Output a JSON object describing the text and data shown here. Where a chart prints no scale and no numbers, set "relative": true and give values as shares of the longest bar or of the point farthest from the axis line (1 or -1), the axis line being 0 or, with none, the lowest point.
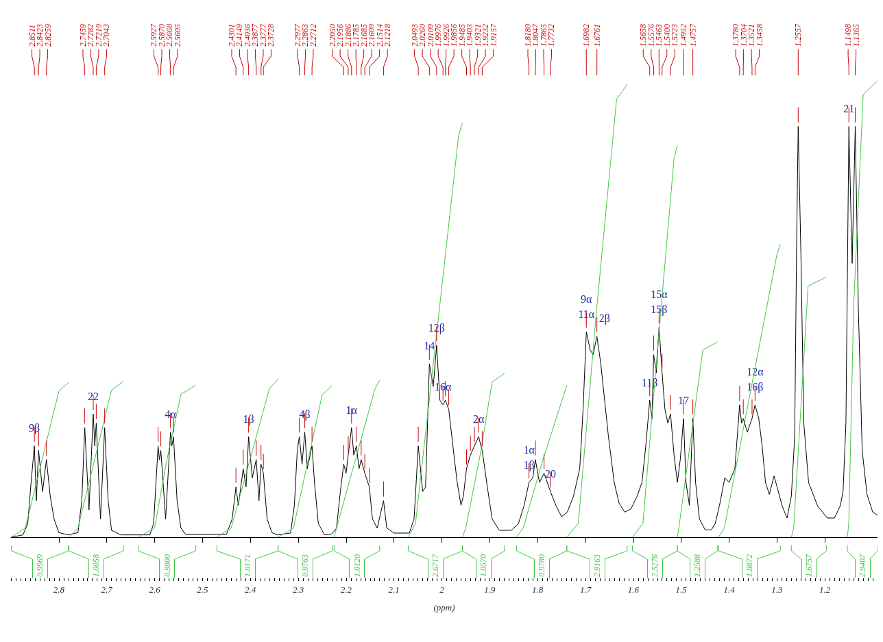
{
  "chart_data": {
    "type": "line",
    "relative": true,
    "marker": "none",
    "legend": "bottom",
    "xlabel": "(ppm)",
    "xlim": [
      2.9,
      1.09
    ],
    "xticks": [
      2.8,
      2.7,
      2.6,
      2.5,
      2.4,
      2.3,
      2.2,
      2.1,
      2.0,
      1.9,
      1.8,
      1.7,
      1.6,
      1.5,
      1.4,
      1.3,
      1.2
    ],
    "series": [
      {
        "color": "#000000",
        "x": [
          2.899,
          2.875,
          2.865,
          2.858,
          2.8511,
          2.847,
          2.8423,
          2.834,
          2.8259,
          2.818,
          2.81,
          2.8,
          2.78,
          2.76,
          2.752,
          2.7459,
          2.737,
          2.7282,
          2.725,
          2.7219,
          2.713,
          2.7043,
          2.697,
          2.69,
          2.67,
          2.61,
          2.602,
          2.5927,
          2.59,
          2.587,
          2.577,
          2.5668,
          2.564,
          2.5605,
          2.553,
          2.545,
          2.535,
          2.45,
          2.438,
          2.4301,
          2.425,
          2.4149,
          2.409,
          2.4036,
          2.396,
          2.3877,
          2.382,
          2.3777,
          2.3728,
          2.365,
          2.355,
          2.344,
          2.316,
          2.308,
          2.302,
          2.2977,
          2.292,
          2.2863,
          2.281,
          2.2712,
          2.266,
          2.258,
          2.245,
          2.23,
          2.22,
          2.212,
          2.205,
          2.2,
          2.1956,
          2.1886,
          2.184,
          2.1785,
          2.173,
          2.1685,
          2.1609,
          2.1514,
          2.145,
          2.135,
          2.1218,
          2.115,
          2.1,
          2.068,
          2.058,
          2.0493,
          2.04,
          2.034,
          2.026,
          2.018,
          2.0109,
          2.004,
          1.9976,
          1.9926,
          1.9856,
          1.978,
          1.968,
          1.96,
          1.955,
          1.9485,
          1.9403,
          1.9321,
          1.9232,
          1.9157,
          1.905,
          1.895,
          1.88,
          1.855,
          1.84,
          1.828,
          1.818,
          1.81,
          1.8047,
          1.796,
          1.7865,
          1.7732,
          1.762,
          1.75,
          1.738,
          1.725,
          1.712,
          1.705,
          1.6982,
          1.69,
          1.684,
          1.6761,
          1.668,
          1.66,
          1.652,
          1.64,
          1.63,
          1.618,
          1.605,
          1.592,
          1.582,
          1.574,
          1.5658,
          1.561,
          1.5576,
          1.552,
          1.5463,
          1.54,
          1.534,
          1.528,
          1.5223,
          1.515,
          1.508,
          1.502,
          1.4952,
          1.49,
          1.483,
          1.4757,
          1.47,
          1.462,
          1.45,
          1.437,
          1.429,
          1.42,
          1.409,
          1.4,
          1.388,
          1.378,
          1.374,
          1.3704,
          1.362,
          1.3521,
          1.3458,
          1.338,
          1.331,
          1.324,
          1.316,
          1.306,
          1.299,
          1.289,
          1.279,
          1.27,
          1.263,
          1.259,
          1.2557,
          1.25,
          1.244,
          1.234,
          1.215,
          1.195,
          1.18,
          1.168,
          1.162,
          1.156,
          1.1498,
          1.143,
          1.1365,
          1.13,
          1.122,
          1.112,
          1.1,
          1.09
        ],
        "values": [
          0,
          0.005,
          0.03,
          0.12,
          0.2,
          0.08,
          0.19,
          0.1,
          0.17,
          0.09,
          0.04,
          0.01,
          0.005,
          0.01,
          0.08,
          0.24,
          0.06,
          0.27,
          0.2,
          0.25,
          0.04,
          0.24,
          0.08,
          0.015,
          0.005,
          0.005,
          0.03,
          0.2,
          0.17,
          0.19,
          0.04,
          0.23,
          0.2,
          0.22,
          0.08,
          0.02,
          0.006,
          0.006,
          0.04,
          0.11,
          0.07,
          0.15,
          0.11,
          0.22,
          0.13,
          0.17,
          0.08,
          0.16,
          0.14,
          0.04,
          0.01,
          0.005,
          0.009,
          0.07,
          0.19,
          0.22,
          0.16,
          0.23,
          0.15,
          0.2,
          0.12,
          0.03,
          0.005,
          0.007,
          0.02,
          0.1,
          0.16,
          0.14,
          0.18,
          0.24,
          0.18,
          0.2,
          0.15,
          0.17,
          0.14,
          0.11,
          0.04,
          0.02,
          0.08,
          0.02,
          0.009,
          0.009,
          0.04,
          0.2,
          0.1,
          0.11,
          0.38,
          0.33,
          0.42,
          0.3,
          0.29,
          0.3,
          0.28,
          0.21,
          0.12,
          0.07,
          0.09,
          0.15,
          0.18,
          0.2,
          0.22,
          0.19,
          0.11,
          0.04,
          0.015,
          0.015,
          0.03,
          0.07,
          0.12,
          0.13,
          0.17,
          0.12,
          0.14,
          0.1,
          0.07,
          0.045,
          0.055,
          0.09,
          0.15,
          0.28,
          0.45,
          0.41,
          0.4,
          0.44,
          0.38,
          0.3,
          0.22,
          0.12,
          0.075,
          0.055,
          0.062,
          0.09,
          0.12,
          0.2,
          0.3,
          0.26,
          0.4,
          0.36,
          0.46,
          0.36,
          0.28,
          0.25,
          0.27,
          0.18,
          0.12,
          0.17,
          0.26,
          0.12,
          0.07,
          0.26,
          0.12,
          0.04,
          0.016,
          0.016,
          0.03,
          0.07,
          0.13,
          0.12,
          0.15,
          0.29,
          0.25,
          0.26,
          0.23,
          0.26,
          0.29,
          0.26,
          0.2,
          0.12,
          0.094,
          0.134,
          0.107,
          0.068,
          0.042,
          0.09,
          0.22,
          0.64,
          0.9,
          0.62,
          0.25,
          0.12,
          0.068,
          0.042,
          0.042,
          0.068,
          0.1,
          0.25,
          0.9,
          0.6,
          0.9,
          0.5,
          0.19,
          0.094,
          0.055,
          0.048
        ]
      },
      {
        "name": "0.9969",
        "color": "#40c840",
        "x": [
          2.899,
          2.87,
          2.835,
          2.8,
          2.78
        ],
        "values": [
          0,
          0.02,
          0.17,
          0.32,
          0.339
        ]
      },
      {
        "name": "1.0058",
        "color": "#40c840",
        "x": [
          2.779,
          2.76,
          2.725,
          2.69,
          2.665
        ],
        "values": [
          0,
          0.02,
          0.171,
          0.322,
          0.342
        ]
      },
      {
        "name": "0.9800",
        "color": "#40c840",
        "x": [
          2.634,
          2.6,
          2.575,
          2.545,
          2.514
        ],
        "values": [
          0,
          0.02,
          0.166,
          0.313,
          0.333
        ]
      },
      {
        "name": "1.0171",
        "color": "#40c840",
        "x": [
          2.47,
          2.44,
          2.4,
          2.36,
          2.342
        ],
        "values": [
          0,
          0.02,
          0.173,
          0.326,
          0.346
        ]
      },
      {
        "name": "0.9763",
        "color": "#40c840",
        "x": [
          2.342,
          2.31,
          2.28,
          2.25,
          2.229
        ],
        "values": [
          0,
          0.02,
          0.166,
          0.312,
          0.332
        ]
      },
      {
        "name": "1.0120",
        "color": "#40c840",
        "x": [
          2.225,
          2.22,
          2.18,
          2.14,
          2.13
        ],
        "values": [
          0,
          0.02,
          0.172,
          0.324,
          0.344
        ]
      },
      {
        "name": "2.6717",
        "color": "#40c840",
        "x": [
          2.07,
          2.055,
          2.01,
          1.965,
          1.957
        ],
        "values": [
          0,
          0.03,
          0.454,
          0.88,
          0.908
        ]
      },
      {
        "name": "1.0570",
        "color": "#40c840",
        "x": [
          1.957,
          1.95,
          1.92,
          1.895,
          1.869
        ],
        "values": [
          0,
          0.02,
          0.18,
          0.34,
          0.359
        ]
      },
      {
        "name": "0.9780",
        "color": "#40c840",
        "x": [
          1.844,
          1.83,
          1.79,
          1.745,
          1.739
        ],
        "values": [
          0,
          0.02,
          0.166,
          0.313,
          0.333
        ]
      },
      {
        "name": "2.9163",
        "color": "#40c840",
        "x": [
          1.739,
          1.715,
          1.677,
          1.635,
          1.613
        ],
        "values": [
          0,
          0.03,
          0.496,
          0.96,
          0.992
        ]
      },
      {
        "name": "2.5276",
        "color": "#40c840",
        "x": [
          1.602,
          1.58,
          1.548,
          1.515,
          1.508
        ],
        "values": [
          0,
          0.03,
          0.43,
          0.83,
          0.859
        ]
      },
      {
        "name": "1.2588",
        "color": "#40c840",
        "x": [
          1.508,
          1.505,
          1.48,
          1.455,
          1.424
        ],
        "values": [
          0,
          0.02,
          0.214,
          0.41,
          0.428
        ]
      },
      {
        "name": "1.8872",
        "color": "#40c840",
        "x": [
          1.422,
          1.41,
          1.355,
          1.3,
          1.293
        ],
        "values": [
          0,
          0.02,
          0.321,
          0.62,
          0.642
        ]
      },
      {
        "name": "1.6757",
        "color": "#40c840",
        "x": [
          1.27,
          1.265,
          1.25,
          1.235,
          1.197
        ],
        "values": [
          0,
          0.02,
          0.285,
          0.55,
          0.57
        ]
      },
      {
        "name": "2.9407",
        "color": "#40c840",
        "x": [
          1.153,
          1.15,
          1.14,
          1.12,
          1.09
        ],
        "values": [
          0,
          0.03,
          0.5,
          0.97,
          1.0
        ]
      }
    ],
    "annotations": [
      {
        "text": "2.8511",
        "x": 2.8511
      },
      {
        "text": "2.8423",
        "x": 2.8423
      },
      {
        "text": "2.8259",
        "x": 2.8259
      },
      {
        "text": "2.7459",
        "x": 2.7459
      },
      {
        "text": "2.7282",
        "x": 2.7282
      },
      {
        "text": "2.7219",
        "x": 2.7219
      },
      {
        "text": "2.7043",
        "x": 2.7043
      },
      {
        "text": "2.5927",
        "x": 2.5927
      },
      {
        "text": "2.5870",
        "x": 2.587
      },
      {
        "text": "2.5668",
        "x": 2.5668
      },
      {
        "text": "2.5605",
        "x": 2.5605
      },
      {
        "text": "2.4301",
        "x": 2.4301
      },
      {
        "text": "2.4149",
        "x": 2.4149
      },
      {
        "text": "2.4036",
        "x": 2.4036
      },
      {
        "text": "2.3877",
        "x": 2.3877
      },
      {
        "text": "2.3777",
        "x": 2.3777
      },
      {
        "text": "2.3728",
        "x": 2.3728
      },
      {
        "text": "2.2977",
        "x": 2.2977
      },
      {
        "text": "2.2863",
        "x": 2.2863
      },
      {
        "text": "2.2712",
        "x": 2.2712
      },
      {
        "text": "2.2050",
        "x": 2.205
      },
      {
        "text": "2.1956",
        "x": 2.1956
      },
      {
        "text": "2.1886",
        "x": 2.1886
      },
      {
        "text": "2.1785",
        "x": 2.1785
      },
      {
        "text": "2.1685",
        "x": 2.1685
      },
      {
        "text": "2.1609",
        "x": 2.1609
      },
      {
        "text": "2.1514",
        "x": 2.1514
      },
      {
        "text": "2.1218",
        "x": 2.1218
      },
      {
        "text": "2.0493",
        "x": 2.0493
      },
      {
        "text": "2.0260",
        "x": 2.026
      },
      {
        "text": "2.0109",
        "x": 2.0109
      },
      {
        "text": "1.9976",
        "x": 1.9976
      },
      {
        "text": "1.9926",
        "x": 1.9926
      },
      {
        "text": "1.9856",
        "x": 1.9856
      },
      {
        "text": "1.9485",
        "x": 1.9485
      },
      {
        "text": "1.9403",
        "x": 1.9403
      },
      {
        "text": "1.9321",
        "x": 1.9321
      },
      {
        "text": "1.9232",
        "x": 1.9232
      },
      {
        "text": "1.9157",
        "x": 1.9157
      },
      {
        "text": "1.8180",
        "x": 1.818
      },
      {
        "text": "1.8047",
        "x": 1.8047
      },
      {
        "text": "1.7865",
        "x": 1.7865
      },
      {
        "text": "1.7732",
        "x": 1.7732
      },
      {
        "text": "1.6982",
        "x": 1.6982
      },
      {
        "text": "1.6761",
        "x": 1.6761
      },
      {
        "text": "1.5658",
        "x": 1.5658
      },
      {
        "text": "1.5576",
        "x": 1.5576
      },
      {
        "text": "1.5463",
        "x": 1.5463
      },
      {
        "text": "1.5400",
        "x": 1.54
      },
      {
        "text": "1.5223",
        "x": 1.5223
      },
      {
        "text": "1.4952",
        "x": 1.4952
      },
      {
        "text": "1.4757",
        "x": 1.4757
      },
      {
        "text": "1.3780",
        "x": 1.378
      },
      {
        "text": "1.3704",
        "x": 1.3704
      },
      {
        "text": "1.3521",
        "x": 1.3521
      },
      {
        "text": "1.3458",
        "x": 1.3458
      },
      {
        "text": "1.2557",
        "x": 1.2557
      },
      {
        "text": "1.1498",
        "x": 1.1498
      },
      {
        "text": "1.1365",
        "x": 1.1365
      },
      {
        "text": "9β",
        "x": 2.8511,
        "y": 0.2
      },
      {
        "text": "22",
        "x": 2.7282,
        "y": 0.27
      },
      {
        "text": "4α",
        "x": 2.5668,
        "y": 0.23
      },
      {
        "text": "1β",
        "x": 2.4036,
        "y": 0.22
      },
      {
        "text": "4β",
        "x": 2.2863,
        "y": 0.23
      },
      {
        "text": "1α",
        "x": 2.1886,
        "y": 0.24
      },
      {
        "text": "14",
        "x": 2.026,
        "y": 0.38
      },
      {
        "text": "12β",
        "x": 2.0109,
        "y": 0.42
      },
      {
        "text": "16α",
        "x": 1.9976,
        "y": 0.29
      },
      {
        "text": "2α",
        "x": 1.9232,
        "y": 0.22
      },
      {
        "text": "1α",
        "x": 1.818,
        "y": 0.12
      },
      {
        "text": "1β",
        "x": 1.818,
        "y": 0.12
      },
      {
        "text": "20",
        "x": 1.7732,
        "y": 0.1
      },
      {
        "text": "9α",
        "x": 1.6982,
        "y": 0.45
      },
      {
        "text": "11α",
        "x": 1.6982,
        "y": 0.45
      },
      {
        "text": "2β",
        "x": 1.6761,
        "y": 0.44
      },
      {
        "text": "11β",
        "x": 1.5658,
        "y": 0.3
      },
      {
        "text": "15α",
        "x": 1.5463,
        "y": 0.46
      },
      {
        "text": "15β",
        "x": 1.5463,
        "y": 0.46
      },
      {
        "text": "17",
        "x": 1.4952,
        "y": 0.26
      },
      {
        "text": "12α",
        "x": 1.3458,
        "y": 0.29
      },
      {
        "text": "16β",
        "x": 1.3458,
        "y": 0.29
      },
      {
        "text": "21",
        "x": 1.1498,
        "y": 0.9
      }
    ]
  }
}
